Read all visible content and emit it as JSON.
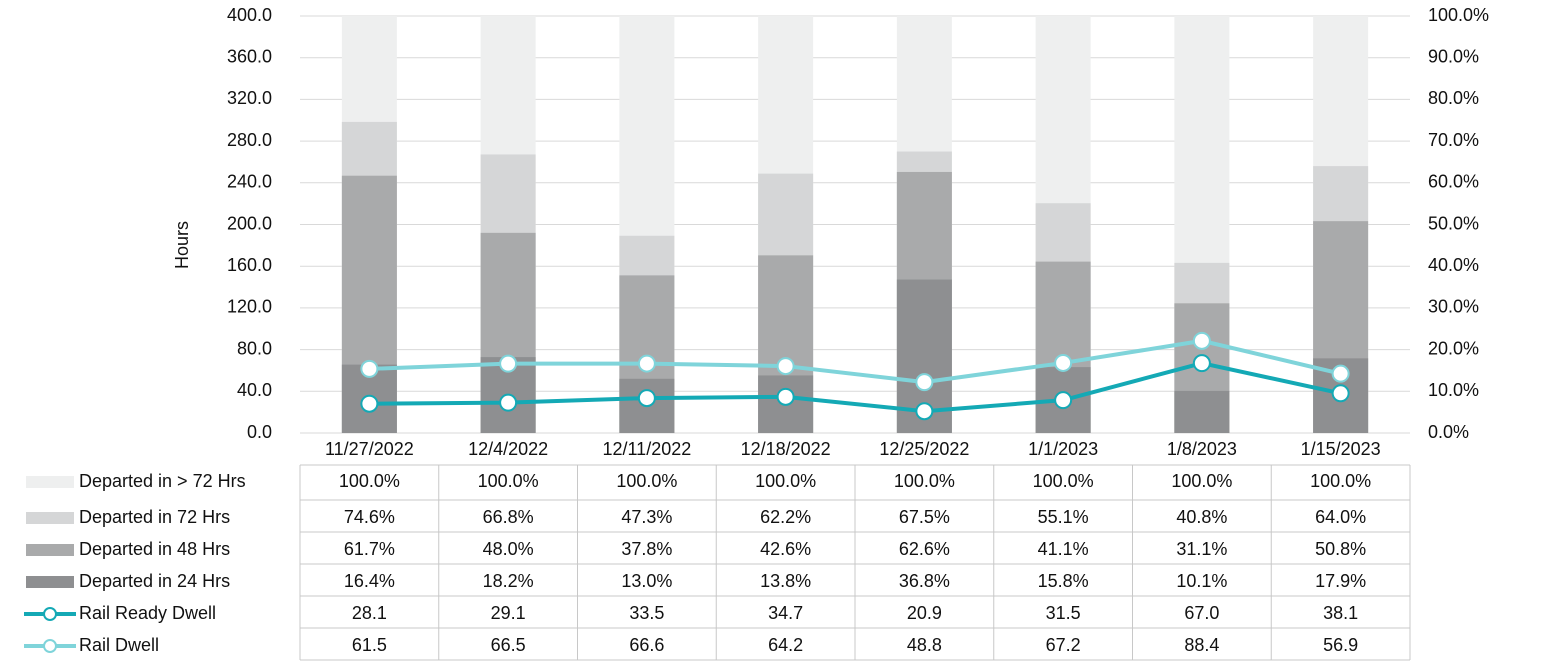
{
  "chart_data": {
    "type": "bar",
    "y_label": "Hours",
    "categories": [
      "11/27/2022",
      "12/4/2022",
      "12/11/2022",
      "12/18/2022",
      "12/25/2022",
      "1/1/2023",
      "1/8/2023",
      "1/15/2023"
    ],
    "ylim": [
      0,
      400
    ],
    "yticks": [
      {
        "value": 0,
        "label": "0.0"
      },
      {
        "value": 40,
        "label": "40.0"
      },
      {
        "value": 80,
        "label": "80.0"
      },
      {
        "value": 120,
        "label": "120.0"
      },
      {
        "value": 160,
        "label": "160.0"
      },
      {
        "value": 200,
        "label": "200.0"
      },
      {
        "value": 240,
        "label": "240.0"
      },
      {
        "value": 280,
        "label": "280.0"
      },
      {
        "value": 320,
        "label": "320.0"
      },
      {
        "value": 360,
        "label": "360.0"
      },
      {
        "value": 400,
        "label": "400.0"
      }
    ],
    "y2lim": [
      0,
      100
    ],
    "y2ticks": [
      {
        "value": 0,
        "label": "0.0%"
      },
      {
        "value": 10,
        "label": "10.0%"
      },
      {
        "value": 20,
        "label": "20.0%"
      },
      {
        "value": 30,
        "label": "30.0%"
      },
      {
        "value": 40,
        "label": "40.0%"
      },
      {
        "value": 50,
        "label": "50.0%"
      },
      {
        "value": 60,
        "label": "60.0%"
      },
      {
        "value": 70,
        "label": "70.0%"
      },
      {
        "value": 80,
        "label": "80.0%"
      },
      {
        "value": 90,
        "label": "90.0%"
      },
      {
        "value": 100,
        "label": "100.0%"
      }
    ],
    "grid": true,
    "series": [
      {
        "name": "Departed in  > 72 Hrs",
        "type": "bar",
        "axis": "y2",
        "color": "#eeefef",
        "values": [
          100,
          100,
          100,
          100,
          100,
          100,
          100,
          100
        ],
        "value_labels": [
          "100.0%",
          "100.0%",
          "100.0%",
          "100.0%",
          "100.0%",
          "100.0%",
          "100.0%",
          "100.0%"
        ]
      },
      {
        "name": "Departed in 72 Hrs",
        "type": "bar",
        "axis": "y2",
        "color": "#d5d6d7",
        "values": [
          74.6,
          66.8,
          47.3,
          62.2,
          67.5,
          55.1,
          40.8,
          64.0
        ],
        "value_labels": [
          "74.6%",
          "66.8%",
          "47.3%",
          "62.2%",
          "67.5%",
          "55.1%",
          "40.8%",
          "64.0%"
        ]
      },
      {
        "name": "Departed in 48 Hrs",
        "type": "bar",
        "axis": "y2",
        "color": "#a9aaab",
        "values": [
          61.7,
          48.0,
          37.8,
          42.6,
          62.6,
          41.1,
          31.1,
          50.8
        ],
        "value_labels": [
          "61.7%",
          "48.0%",
          "37.8%",
          "42.6%",
          "62.6%",
          "41.1%",
          "31.1%",
          "50.8%"
        ]
      },
      {
        "name": "Departed in 24 Hrs",
        "type": "bar",
        "axis": "y2",
        "color": "#8e8f91",
        "values": [
          16.4,
          18.2,
          13.0,
          13.8,
          36.8,
          15.8,
          10.1,
          17.9
        ],
        "value_labels": [
          "16.4%",
          "18.2%",
          "13.0%",
          "13.8%",
          "36.8%",
          "15.8%",
          "10.1%",
          "17.9%"
        ]
      },
      {
        "name": "Rail Ready Dwell",
        "type": "line",
        "color": "#14a9b5",
        "values": [
          28.1,
          29.1,
          33.5,
          34.7,
          20.9,
          31.5,
          67.0,
          38.1
        ],
        "value_labels": [
          "28.1",
          "29.1",
          "33.5",
          "34.7",
          "20.9",
          "31.5",
          "67.0",
          "38.1"
        ]
      },
      {
        "name": "Rail Dwell",
        "type": "line",
        "color": "#7fd4da",
        "values": [
          61.5,
          66.5,
          66.6,
          64.2,
          48.8,
          67.2,
          88.4,
          56.9
        ],
        "value_labels": [
          "61.5",
          "66.5",
          "66.6",
          "64.2",
          "48.8",
          "67.2",
          "88.4",
          "56.9"
        ]
      }
    ]
  }
}
